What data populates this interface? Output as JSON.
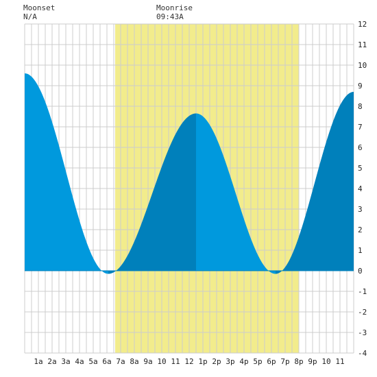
{
  "header": {
    "moonset_label": "Moonset",
    "moonset_value": "N/A",
    "moonrise_label": "Moonrise",
    "moonrise_value": "09:43A"
  },
  "colors": {
    "daylight": "#f2ec8c",
    "night": "#ffffff",
    "tide_fill_rising": "#0080bb",
    "tide_fill_falling": "#0099dd",
    "grid": "#cccccc",
    "axis_text": "#222222"
  },
  "chart_data": {
    "type": "area",
    "title": "",
    "xlabel": "",
    "ylabel": "",
    "x_tick_labels": [
      "1a",
      "2a",
      "3a",
      "4a",
      "5a",
      "6a",
      "7a",
      "8a",
      "9a",
      "10",
      "11",
      "12",
      "1p",
      "2p",
      "3p",
      "4p",
      "5p",
      "6p",
      "7p",
      "8p",
      "9p",
      "10",
      "11"
    ],
    "y_tick_labels": [
      "12",
      "11",
      "10",
      "9",
      "8",
      "7",
      "6",
      "5",
      "4",
      "3",
      "2",
      "1",
      "0",
      "-1",
      "-2",
      "-3",
      "-4"
    ],
    "xlim_hours": [
      0,
      24
    ],
    "ylim": [
      -4,
      12
    ],
    "daylight_hours": [
      6.6,
      20.0
    ],
    "tide_extremes": [
      {
        "hour": 0.0,
        "height": 9.6
      },
      {
        "hour": 6.1,
        "height": -0.15
      },
      {
        "hour": 12.5,
        "height": 7.65
      },
      {
        "hour": 18.3,
        "height": -0.15
      },
      {
        "hour": 24.0,
        "height": 8.7
      }
    ],
    "grid": true
  }
}
